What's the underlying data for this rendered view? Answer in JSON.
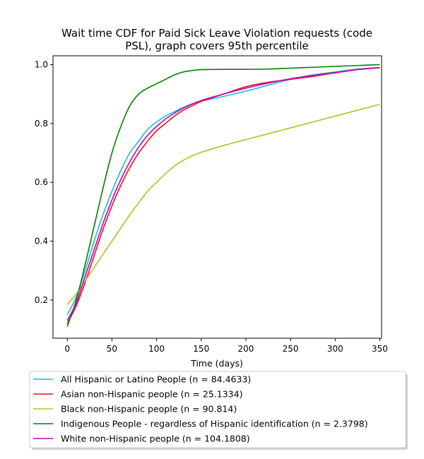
{
  "chart_data": {
    "type": "line",
    "title_lines": [
      "Wait time CDF for Paid Sick Leave Violation  requests (code",
      "PSL), graph covers 95th percentile"
    ],
    "xlabel": "Time (days)",
    "ylabel": "",
    "xlim": [
      -16,
      352
    ],
    "ylim": [
      0.07,
      1.03
    ],
    "xticks": [
      0,
      50,
      100,
      150,
      200,
      250,
      300,
      350
    ],
    "yticks": [
      0.2,
      0.4,
      0.6,
      0.8,
      1.0
    ],
    "ytick_labels": [
      "0.2",
      "0.4",
      "0.6",
      "0.8",
      "1.0"
    ],
    "grid": false,
    "legend_position": "below",
    "series": [
      {
        "name": "All Hispanic or Latino People (n = 84.4633)",
        "color": "#17becf",
        "x": [
          0,
          10,
          20,
          30,
          40,
          50,
          60,
          70,
          80,
          90,
          100,
          110,
          120,
          130,
          140,
          150,
          175,
          200,
          225,
          250,
          275,
          300,
          325,
          350
        ],
        "y": [
          0.15,
          0.21,
          0.3,
          0.4,
          0.49,
          0.57,
          0.64,
          0.7,
          0.74,
          0.78,
          0.805,
          0.825,
          0.84,
          0.855,
          0.867,
          0.876,
          0.892,
          0.91,
          0.93,
          0.95,
          0.965,
          0.975,
          0.985,
          0.99
        ]
      },
      {
        "name": "Asian non-Hispanic people (n = 25.1334)",
        "color": "#e8101e",
        "x": [
          0,
          10,
          20,
          30,
          40,
          50,
          60,
          70,
          80,
          90,
          100,
          110,
          120,
          130,
          140,
          150,
          175,
          200,
          225,
          250,
          275,
          300,
          325,
          350
        ],
        "y": [
          0.12,
          0.18,
          0.26,
          0.35,
          0.44,
          0.52,
          0.59,
          0.65,
          0.7,
          0.74,
          0.775,
          0.8,
          0.825,
          0.845,
          0.86,
          0.875,
          0.9,
          0.925,
          0.94,
          0.95,
          0.96,
          0.972,
          0.983,
          0.99
        ]
      },
      {
        "name": "Black non-Hispanic people (n = 90.814)",
        "color": "#bcbd22",
        "x": [
          0,
          10,
          20,
          30,
          40,
          50,
          60,
          70,
          80,
          90,
          100,
          110,
          120,
          130,
          140,
          150,
          175,
          200,
          225,
          250,
          275,
          300,
          325,
          350
        ],
        "y": [
          0.185,
          0.22,
          0.265,
          0.31,
          0.355,
          0.4,
          0.445,
          0.49,
          0.53,
          0.57,
          0.6,
          0.63,
          0.655,
          0.675,
          0.69,
          0.702,
          0.725,
          0.745,
          0.765,
          0.785,
          0.805,
          0.825,
          0.845,
          0.865
        ]
      },
      {
        "name": "Indigenous People - regardless of Hispanic identification (n = 2.3798)",
        "color": "#008000",
        "x": [
          0,
          10,
          20,
          30,
          40,
          50,
          60,
          70,
          80,
          90,
          100,
          110,
          120,
          130,
          140,
          150,
          175,
          200,
          225,
          250,
          275,
          300,
          325,
          350
        ],
        "y": [
          0.11,
          0.2,
          0.32,
          0.45,
          0.58,
          0.7,
          0.79,
          0.86,
          0.9,
          0.92,
          0.935,
          0.95,
          0.965,
          0.975,
          0.98,
          0.983,
          0.984,
          0.984,
          0.985,
          0.988,
          0.991,
          0.994,
          0.997,
          1.0
        ]
      },
      {
        "name": "White non-Hispanic people (n = 104.1808)",
        "color": "#bf00bf",
        "x": [
          0,
          10,
          20,
          30,
          40,
          50,
          60,
          70,
          80,
          90,
          100,
          110,
          120,
          130,
          140,
          150,
          175,
          200,
          225,
          250,
          275,
          300,
          325,
          350
        ],
        "y": [
          0.13,
          0.19,
          0.28,
          0.37,
          0.46,
          0.54,
          0.61,
          0.67,
          0.72,
          0.76,
          0.79,
          0.815,
          0.835,
          0.852,
          0.866,
          0.878,
          0.9,
          0.92,
          0.937,
          0.952,
          0.963,
          0.973,
          0.983,
          0.99
        ]
      }
    ]
  }
}
